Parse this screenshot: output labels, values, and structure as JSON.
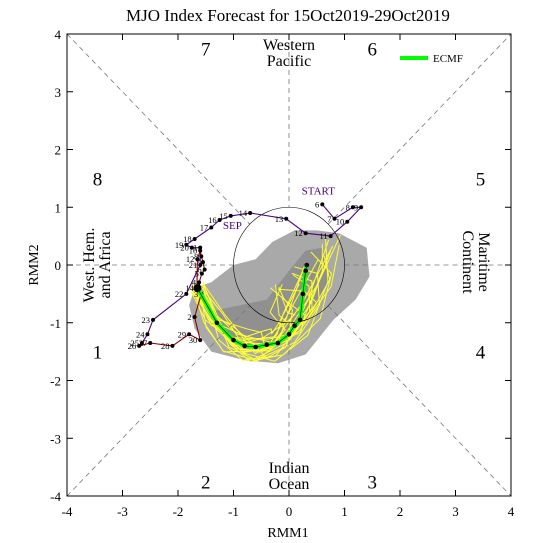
{
  "chart_data": {
    "type": "line",
    "title": "MJO Index Forecast for 15Oct2019-29Oct2019",
    "xlabel": "RMM1",
    "ylabel": "RMM2",
    "xlim": [
      -4,
      4
    ],
    "ylim": [
      -4,
      4
    ],
    "xticks": [
      "-4",
      "-3",
      "-2",
      "-1",
      "0",
      "1",
      "2",
      "3",
      "4"
    ],
    "yticks": [
      "-4",
      "-3",
      "-2",
      "-1",
      "0",
      "1",
      "2",
      "3",
      "4"
    ],
    "phase_labels": [
      {
        "label": "1",
        "x": -3.45,
        "y": -1.5
      },
      {
        "label": "2",
        "x": -1.5,
        "y": -3.75
      },
      {
        "label": "3",
        "x": 1.5,
        "y": -3.75
      },
      {
        "label": "4",
        "x": 3.45,
        "y": -1.5
      },
      {
        "label": "5",
        "x": 3.45,
        "y": 1.5
      },
      {
        "label": "6",
        "x": 1.5,
        "y": 3.75
      },
      {
        "label": "7",
        "x": -1.5,
        "y": 3.75
      },
      {
        "label": "8",
        "x": -3.45,
        "y": 1.5
      }
    ],
    "regions": {
      "top": [
        "Western",
        "Pacific"
      ],
      "bottom": [
        "Indian",
        "Ocean"
      ],
      "left": [
        "West. Hem.",
        "and Africa"
      ],
      "right": [
        "Maritime",
        "Continent"
      ]
    },
    "annotations": {
      "start": "START",
      "month": "SEP"
    },
    "legend": {
      "label": "ECMF",
      "color": "#00ff00",
      "position": "top-right"
    },
    "colors": {
      "observed": "#4b0082",
      "observed_recent": "#8b0000",
      "members": "#ffff33",
      "spread": "#a9a9a9",
      "mean": "#00ff00"
    },
    "observed": [
      {
        "label": "6",
        "x": 0.6,
        "y": 1.05
      },
      {
        "label": "7",
        "x": 0.82,
        "y": 0.8
      },
      {
        "label": "8",
        "x": 1.15,
        "y": 1.0
      },
      {
        "label": "9",
        "x": 1.3,
        "y": 1.0
      },
      {
        "label": "10",
        "x": 1.05,
        "y": 0.75
      },
      {
        "label": "11",
        "x": 0.75,
        "y": 0.5
      },
      {
        "label": "12",
        "x": 0.3,
        "y": 0.55
      },
      {
        "label": "13",
        "x": -0.05,
        "y": 0.8
      },
      {
        "label": "14",
        "x": -0.7,
        "y": 0.9
      },
      {
        "label": "15",
        "x": -1.05,
        "y": 0.85
      },
      {
        "label": "16",
        "x": -1.25,
        "y": 0.78
      },
      {
        "label": "17",
        "x": -1.4,
        "y": 0.65
      },
      {
        "label": "18",
        "x": -1.7,
        "y": 0.45
      },
      {
        "label": "19",
        "x": -1.85,
        "y": 0.35
      },
      {
        "label": "20",
        "x": -1.75,
        "y": 0.3
      },
      {
        "label": "1",
        "x": -1.6,
        "y": 0.3
      },
      {
        "label": "21",
        "x": -1.6,
        "y": 0.0
      },
      {
        "label": "22",
        "x": -1.85,
        "y": -0.5
      },
      {
        "label": "23",
        "x": -2.45,
        "y": -0.95
      },
      {
        "label": "24",
        "x": -2.55,
        "y": -1.2
      },
      {
        "label": "25",
        "x": -2.65,
        "y": -1.35
      },
      {
        "label": "26",
        "x": -2.7,
        "y": -1.4
      },
      {
        "label": "27",
        "x": -2.5,
        "y": -1.35
      },
      {
        "label": "28",
        "x": -2.1,
        "y": -1.4
      },
      {
        "label": "29",
        "x": -1.8,
        "y": -1.2
      },
      {
        "label": "30",
        "x": -1.6,
        "y": -1.3
      },
      {
        "label": "2",
        "x": -1.7,
        "y": -0.9
      },
      {
        "label": "3",
        "x": -1.58,
        "y": -0.5
      },
      {
        "label": "4",
        "x": -1.62,
        "y": -0.3
      },
      {
        "label": "5",
        "x": -1.57,
        "y": -0.15
      },
      {
        "label": "6",
        "x": -1.52,
        "y": -0.08
      },
      {
        "label": "7",
        "x": -1.55,
        "y": 0.05
      },
      {
        "label": "8",
        "x": -1.58,
        "y": 0.15
      },
      {
        "label": "10",
        "x": -1.6,
        "y": 0.25
      },
      {
        "label": "12",
        "x": -1.65,
        "y": 0.1
      },
      {
        "label": "14",
        "x": -1.66,
        "y": -0.4
      }
    ],
    "ensemble_mean": [
      {
        "x": -1.65,
        "y": -0.4
      },
      {
        "x": -1.3,
        "y": -1.0
      },
      {
        "x": -1.0,
        "y": -1.3
      },
      {
        "x": -0.8,
        "y": -1.4
      },
      {
        "x": -0.6,
        "y": -1.42
      },
      {
        "x": -0.4,
        "y": -1.38
      },
      {
        "x": -0.2,
        "y": -1.35
      },
      {
        "x": 0.0,
        "y": -1.2
      },
      {
        "x": 0.1,
        "y": -1.05
      },
      {
        "x": 0.2,
        "y": -0.95
      },
      {
        "x": 0.25,
        "y": -0.5
      },
      {
        "x": 0.3,
        "y": -0.1
      },
      {
        "x": 0.32,
        "y": 0.0
      }
    ]
  }
}
